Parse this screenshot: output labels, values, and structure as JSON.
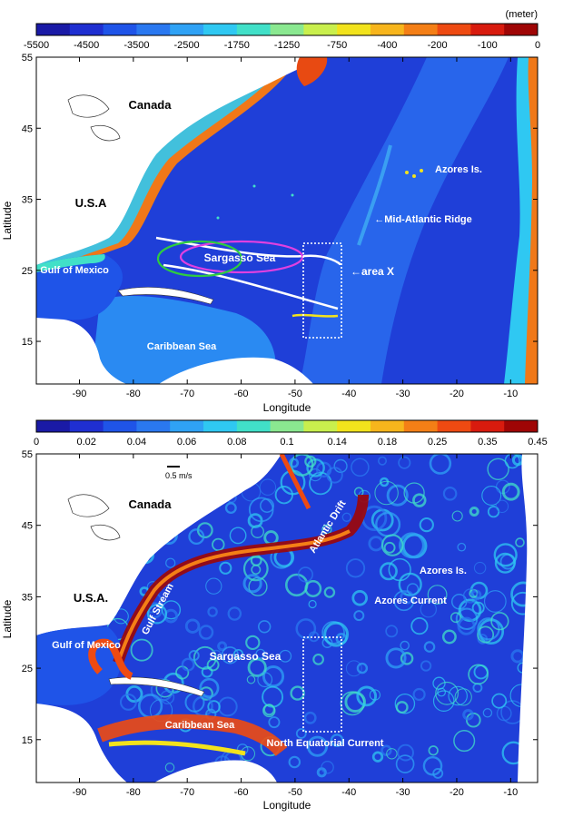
{
  "panel_top": {
    "colorbar_unit": "(meter)",
    "colorbar_ticks": [
      "-5500",
      "-4500",
      "-3500",
      "-2500",
      "-1750",
      "-1250",
      "-750",
      "-400",
      "-200",
      "-100",
      "0"
    ],
    "colorbar_colors": [
      "#1a1aa6",
      "#1f2fd1",
      "#1f54e8",
      "#2a78f0",
      "#2fa2f5",
      "#2fc8f2",
      "#41e0c8",
      "#8ae890",
      "#c9ef4d",
      "#f2e31c",
      "#f7b51c",
      "#f47f16",
      "#ee4a12",
      "#d81b0e",
      "#9f0505"
    ],
    "xticks": [
      "-90",
      "-80",
      "-70",
      "-60",
      "-50",
      "-40",
      "-30",
      "-20",
      "-10"
    ],
    "yticks": [
      "55",
      "45",
      "35",
      "25",
      "15"
    ],
    "xlabel": "Longitude",
    "ylabel": "Latitude",
    "labels": {
      "canada": "Canada",
      "usa": "U.S.A",
      "gulf": "Gulf of Mexico",
      "caribbean": "Caribbean Sea",
      "sargasso": "Sargasso Sea",
      "azores": "Azores Is.",
      "ridge": "←Mid-Atlantic Ridge",
      "areax": "←area X"
    }
  },
  "panel_bottom": {
    "colorbar_ticks": [
      "0",
      "0.02",
      "0.04",
      "0.06",
      "0.08",
      "0.1",
      "0.14",
      "0.18",
      "0.25",
      "0.35",
      "0.45"
    ],
    "colorbar_colors": [
      "#1a1aa6",
      "#1f2fd1",
      "#1f54e8",
      "#2a78f0",
      "#2fa2f5",
      "#2fc8f2",
      "#41e0c8",
      "#8ae890",
      "#c9ef4d",
      "#f2e31c",
      "#f7b51c",
      "#f47f16",
      "#ee4a12",
      "#d81b0e",
      "#9f0505"
    ],
    "xticks": [
      "-90",
      "-80",
      "-70",
      "-60",
      "-50",
      "-40",
      "-30",
      "-20",
      "-10"
    ],
    "yticks": [
      "55",
      "45",
      "35",
      "25",
      "15"
    ],
    "xlabel": "Longitude",
    "ylabel": "Latitude",
    "scale_label": "0.5 m/s",
    "labels": {
      "canada": "Canada",
      "usa": "U.S.A.",
      "gulf": "Gulf of Mexico",
      "caribbean": "Caribbean Sea",
      "sargasso": "Sargasso Sea",
      "azores": "Azores Is.",
      "azores_current": "Azores Current",
      "gulf_stream": "Gulf Stream",
      "atlantic_drift": "Atlantic Drift",
      "nec": "North Equatorial Current"
    }
  }
}
